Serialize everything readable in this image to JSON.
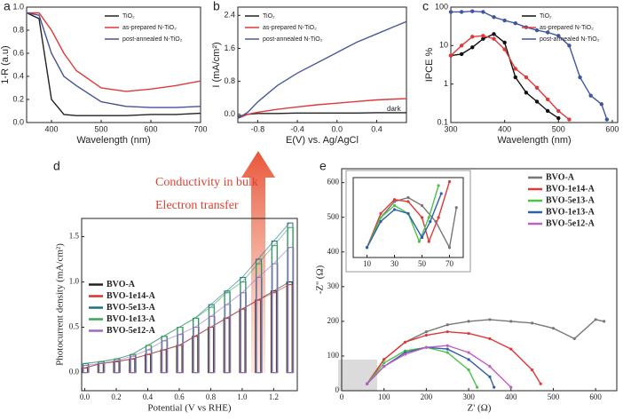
{
  "chart_data": [
    {
      "type": "line",
      "label": "a",
      "xlabel": "Wavelength (nm)",
      "ylabel": "1-R (a.u)",
      "x": [
        350,
        375,
        400,
        425,
        450,
        500,
        550,
        600,
        650,
        700
      ],
      "xlim": [
        350,
        700
      ],
      "xticks": [
        400,
        500,
        600,
        700
      ],
      "ylim": [
        0,
        1.0
      ],
      "yticks": [
        {
          "value": 0,
          "label": "0.0"
        },
        0.2,
        0.4,
        0.6,
        0.8,
        {
          "value": 1.0,
          "label": "1.0"
        }
      ],
      "legend": "upper right",
      "series": [
        {
          "name": "TiO₂",
          "color": "#222222",
          "values": [
            0.95,
            0.9,
            0.2,
            0.07,
            0.06,
            0.06,
            0.06,
            0.07,
            0.07,
            0.08
          ]
        },
        {
          "name": "as-prepared N-TiO₂",
          "color": "#e0393a",
          "values": [
            0.95,
            0.95,
            0.8,
            0.6,
            0.45,
            0.3,
            0.27,
            0.29,
            0.32,
            0.36
          ]
        },
        {
          "name": "post-annealed N-TiO₂",
          "color": "#4a4f9a",
          "values": [
            0.95,
            0.93,
            0.6,
            0.4,
            0.32,
            0.18,
            0.14,
            0.13,
            0.13,
            0.14
          ]
        }
      ]
    },
    {
      "type": "line",
      "label": "b",
      "xlabel": "E(V) vs. Ag/AgCl",
      "ylabel": "I (mA/cm²)",
      "annotation": "dark",
      "x": [
        -1.0,
        -0.9,
        -0.8,
        -0.6,
        -0.4,
        -0.2,
        0,
        0.2,
        0.4,
        0.6,
        0.7
      ],
      "xlim": [
        -1.0,
        0.7
      ],
      "xticks": [
        -0.8,
        -0.4,
        {
          "value": 0,
          "label": "0.0"
        },
        0.4
      ],
      "ylim": [
        -0.2,
        2.6
      ],
      "yticks": [
        {
          "value": 0,
          "label": "0.0"
        },
        0.8,
        1.6,
        2.4
      ],
      "legend": "upper left",
      "series": [
        {
          "name": "TiO₂",
          "color": "#222222",
          "values": [
            -0.05,
            0,
            0.02,
            0.02,
            0.03,
            0.03,
            0.03,
            0.03,
            0.04,
            0.04,
            0.04
          ]
        },
        {
          "name": "as-prepared N-TiO₂",
          "color": "#e0393a",
          "values": [
            -0.1,
            0,
            0.05,
            0.12,
            0.18,
            0.23,
            0.27,
            0.31,
            0.35,
            0.37,
            0.38
          ]
        },
        {
          "name": "post-annealed N-TiO₂",
          "color": "#4a5a9a",
          "values": [
            -0.1,
            0.05,
            0.3,
            0.7,
            1.0,
            1.25,
            1.5,
            1.75,
            1.95,
            2.15,
            2.25
          ]
        }
      ]
    },
    {
      "type": "line",
      "label": "c",
      "xlabel": "Wavelength (nm)",
      "ylabel": "IPCE %",
      "log_y": true,
      "markers": true,
      "x": [
        300,
        320,
        340,
        360,
        380,
        400,
        420,
        440,
        460,
        480,
        500,
        520,
        540,
        560,
        580,
        590
      ],
      "xlim": [
        300,
        610
      ],
      "xticks": [
        300,
        400,
        500,
        600
      ],
      "ylim": [
        0.1,
        100
      ],
      "yticks": [
        0.1,
        1,
        10,
        100
      ],
      "legend": "upper right",
      "series": [
        {
          "name": "TiO₂",
          "color": "#111111",
          "values": [
            5.5,
            6,
            9,
            15,
            20,
            12,
            1.5,
            0.6,
            0.35,
            0.2,
            0.13,
            null,
            null,
            null,
            null,
            null
          ]
        },
        {
          "name": "as-prepared N-TiO₂",
          "color": "#e0393a",
          "values": [
            5.5,
            10,
            17,
            18,
            15,
            8,
            2.5,
            1.5,
            0.8,
            0.4,
            0.2,
            0.12,
            null,
            null,
            null,
            null
          ]
        },
        {
          "name": "post-annealed N-TiO₂",
          "color": "#3e56a0",
          "values": [
            75,
            75,
            78,
            75,
            55,
            45,
            38,
            30,
            25,
            22,
            18,
            10,
            1.5,
            0.5,
            0.3,
            0.12
          ]
        }
      ]
    },
    {
      "type": "chopped",
      "label": "d",
      "xlabel": "Potential (V vs RHE)",
      "ylabel": "Photocurrent density (mA/cm²)",
      "annotations": [
        "Conductivity in bulk",
        "Electron transfer"
      ],
      "x": [
        0.0,
        0.1,
        0.2,
        0.3,
        0.4,
        0.5,
        0.6,
        0.7,
        0.8,
        0.9,
        1.0,
        1.1,
        1.2,
        1.3
      ],
      "xlim": [
        -0.02,
        1.35
      ],
      "xticks": [
        {
          "value": 0,
          "label": "0.0"
        },
        0.2,
        0.4,
        0.6,
        0.8,
        {
          "value": 1.0,
          "label": "1.0"
        },
        1.2
      ],
      "ylim": [
        -0.2,
        1.7
      ],
      "yticks": [
        {
          "value": 0,
          "label": "0.0"
        },
        0.5,
        {
          "value": 1.0,
          "label": "1.0"
        },
        1.5
      ],
      "legend": "middle left",
      "series": [
        {
          "name": "BVO-A",
          "color": "#222222",
          "values": [
            0.05,
            0.1,
            0.12,
            0.15,
            0.2,
            0.25,
            0.3,
            0.4,
            0.5,
            0.6,
            0.7,
            0.8,
            0.9,
            1.0
          ]
        },
        {
          "name": "BVO-1e14-A",
          "color": "#d9322b",
          "values": [
            0.05,
            0.1,
            0.12,
            0.15,
            0.2,
            0.25,
            0.3,
            0.4,
            0.5,
            0.6,
            0.7,
            0.8,
            0.88,
            0.97
          ]
        },
        {
          "name": "BVO-5e13-A",
          "color": "#1f6f8b",
          "values": [
            0.1,
            0.12,
            0.15,
            0.2,
            0.3,
            0.4,
            0.5,
            0.6,
            0.75,
            0.9,
            1.05,
            1.25,
            1.45,
            1.65
          ]
        },
        {
          "name": "BVO-1e13-A",
          "color": "#3aa655",
          "values": [
            0.1,
            0.12,
            0.15,
            0.2,
            0.3,
            0.4,
            0.5,
            0.6,
            0.72,
            0.88,
            1.0,
            1.2,
            1.4,
            1.6
          ]
        },
        {
          "name": "BVO-5e12-A",
          "color": "#9b6bc4",
          "values": [
            0.08,
            0.1,
            0.13,
            0.18,
            0.25,
            0.35,
            0.42,
            0.5,
            0.62,
            0.75,
            0.88,
            1.05,
            1.2,
            1.38
          ]
        }
      ]
    },
    {
      "type": "scatter",
      "label": "e",
      "xlabel": "Z' (Ω)",
      "ylabel": "-Z'' (Ω)",
      "xlim": [
        0,
        650
      ],
      "xticks": [
        0,
        100,
        200,
        300,
        400,
        500,
        600
      ],
      "ylim": [
        0,
        640
      ],
      "yticks": [
        0,
        100,
        200,
        300,
        400,
        500,
        600
      ],
      "legend": "upper right",
      "series": [
        {
          "name": "BVO-A",
          "color": "#777777",
          "x": [
            60,
            100,
            150,
            200,
            250,
            300,
            350,
            400,
            450,
            500,
            550,
            600,
            620
          ],
          "values": [
            20,
            90,
            140,
            170,
            190,
            200,
            205,
            200,
            195,
            180,
            150,
            205,
            200
          ]
        },
        {
          "name": "BVO-1e14-A",
          "color": "#e0393a",
          "x": [
            60,
            100,
            150,
            200,
            250,
            300,
            350,
            400,
            450,
            470
          ],
          "values": [
            20,
            90,
            140,
            160,
            170,
            165,
            150,
            120,
            60,
            20
          ]
        },
        {
          "name": "BVO-5e13-A",
          "color": "#4cc24c",
          "x": [
            60,
            100,
            150,
            200,
            250,
            300,
            320
          ],
          "values": [
            20,
            80,
            115,
            125,
            110,
            60,
            10
          ]
        },
        {
          "name": "BVO-1e13-A",
          "color": "#2f5fa8",
          "x": [
            60,
            100,
            150,
            200,
            250,
            300,
            350,
            360
          ],
          "values": [
            20,
            70,
            110,
            125,
            120,
            90,
            40,
            10
          ]
        },
        {
          "name": "BVO-5e12-A",
          "color": "#c05fc0",
          "x": [
            60,
            100,
            150,
            200,
            250,
            300,
            350,
            400
          ],
          "values": [
            20,
            70,
            105,
            125,
            130,
            110,
            70,
            10
          ]
        }
      ]
    },
    {
      "type": "scatter",
      "xlim": [
        0,
        80
      ],
      "xticks": [
        10,
        30,
        50,
        70
      ],
      "ylim": [
        0,
        40
      ],
      "series": [
        {
          "color": "#777777",
          "x": [
            10,
            20,
            30,
            40,
            50,
            60,
            70,
            75
          ],
          "values": [
            5,
            20,
            28,
            30,
            26,
            18,
            5,
            25
          ]
        },
        {
          "color": "#e0393a",
          "x": [
            10,
            20,
            30,
            40,
            50,
            55,
            62,
            70
          ],
          "values": [
            5,
            22,
            29,
            28,
            20,
            8,
            20,
            38
          ]
        },
        {
          "color": "#4cc24c",
          "x": [
            10,
            20,
            30,
            40,
            48,
            55,
            62
          ],
          "values": [
            5,
            20,
            26,
            22,
            8,
            20,
            36
          ]
        },
        {
          "color": "#2f5fa8",
          "x": [
            10,
            20,
            30,
            40,
            50,
            56,
            64
          ],
          "values": [
            5,
            18,
            24,
            22,
            10,
            18,
            32
          ]
        }
      ]
    }
  ]
}
